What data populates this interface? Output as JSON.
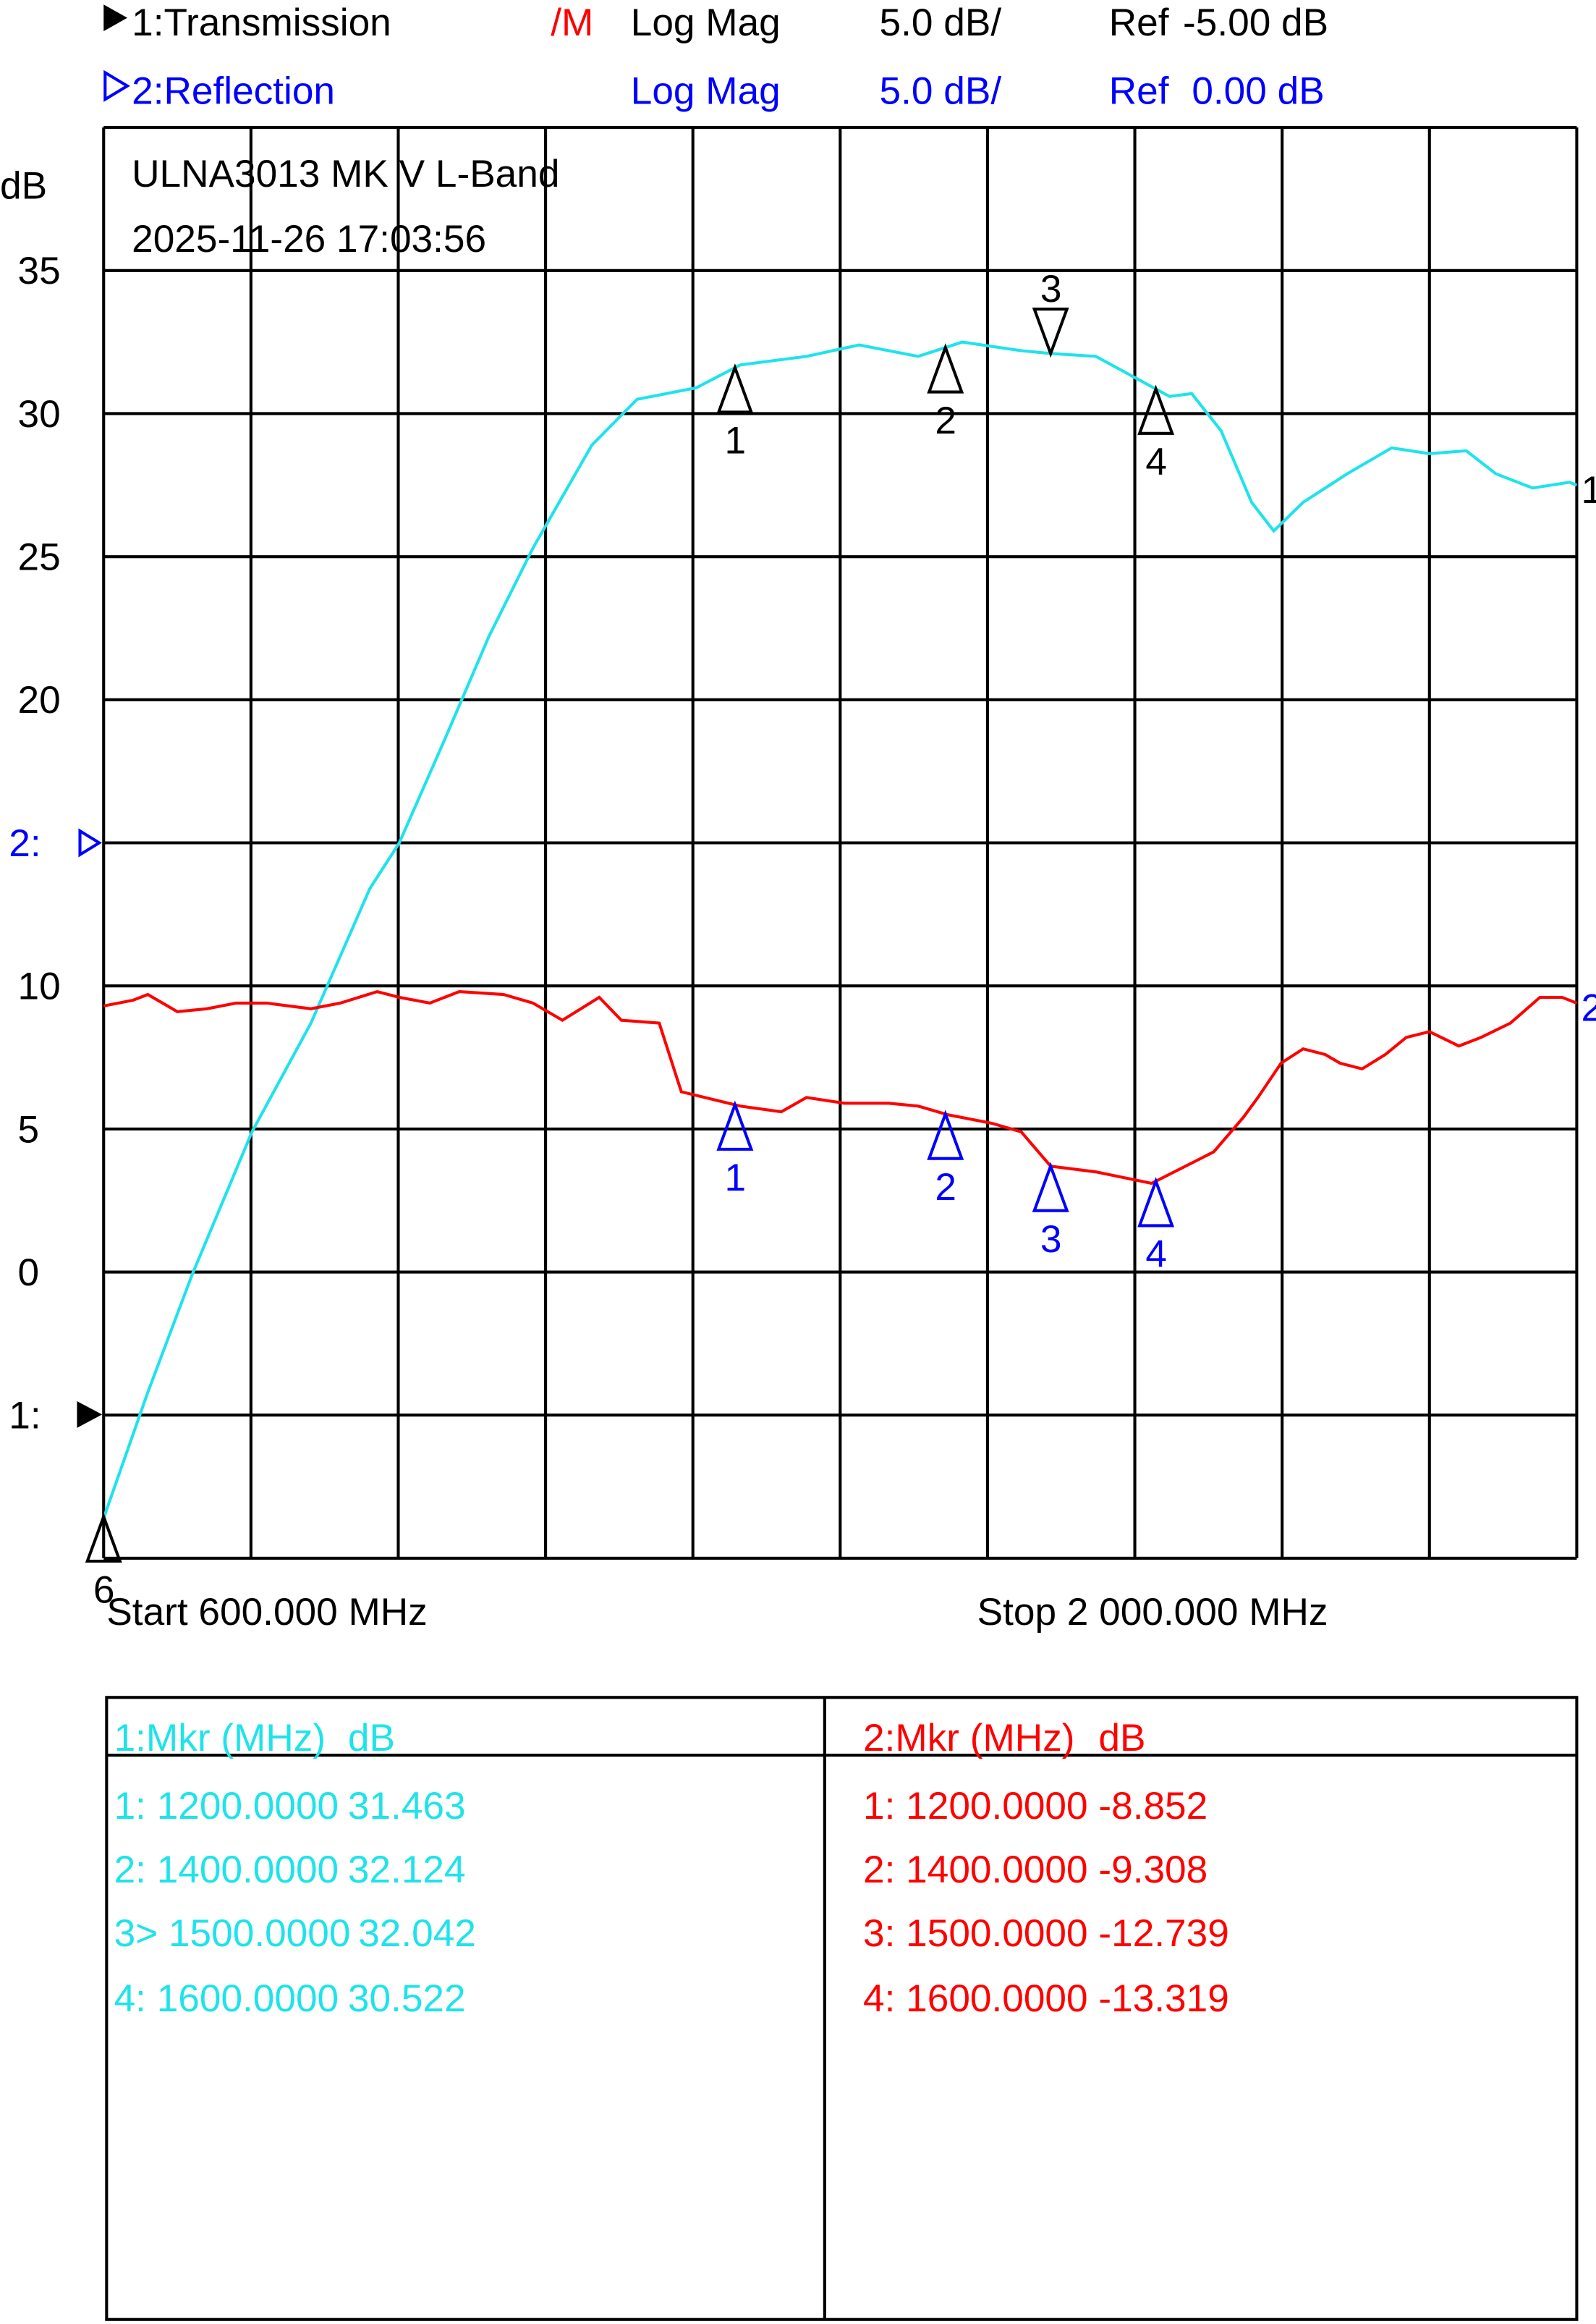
{
  "header": {
    "trace1": {
      "label": "1:Transmission",
      "flag": "/M",
      "format": "Log Mag",
      "scale": "5.0 dB/",
      "ref_label": "Ref",
      "ref": "-5.00 dB"
    },
    "trace2": {
      "label": "2:Reflection",
      "format": "Log Mag",
      "scale": "5.0 dB/",
      "ref_label": "Ref",
      "ref": "0.00 dB"
    }
  },
  "title": {
    "line1": "ULNA3013 MK V L-Band",
    "line2": "2025-11-26 17:03:56"
  },
  "colors": {
    "trace1": "#1fe3ea",
    "trace2": "#ff0000",
    "trace2_label": "#0000ff",
    "grid": "#000000"
  },
  "chart_data": {
    "type": "line",
    "xlabel": "MHz",
    "ylabel": "dB",
    "xlim": [
      600,
      2000
    ],
    "ylim": [
      -10,
      40
    ],
    "grid": true,
    "start_label": "Start 600.000 MHz",
    "stop_label": "Stop 2 000.000 MHz",
    "y_ticks": [
      {
        "value": 35,
        "label": "35"
      },
      {
        "value": 30,
        "label": "30"
      },
      {
        "value": 25,
        "label": "25"
      },
      {
        "value": 20,
        "label": "20"
      },
      {
        "value": 15,
        "label": "2:"
      },
      {
        "value": 10,
        "label": "10"
      },
      {
        "value": 5,
        "label": "5"
      },
      {
        "value": 0,
        "label": "0"
      },
      {
        "value": -5,
        "label": "1:"
      }
    ],
    "series": [
      {
        "name": "1:Transmission",
        "end_label": "1",
        "color": "#1fe3ea",
        "x": [
          600,
          642,
          684,
          741,
          797,
          853,
          881,
          924,
          966,
          1008,
          1064,
          1107,
          1163,
          1205,
          1268,
          1318,
          1374,
          1416,
          1472,
          1500,
          1543,
          1578,
          1613,
          1634,
          1662,
          1691,
          1712,
          1740,
          1782,
          1824,
          1860,
          1895,
          1923,
          1958,
          1993,
          2000
        ],
        "y": [
          -8.6,
          -4.2,
          -0.1,
          4.9,
          8.7,
          13.4,
          15.0,
          18.6,
          22.2,
          25.3,
          28.9,
          30.5,
          30.9,
          31.7,
          32.0,
          32.4,
          32.0,
          32.5,
          32.2,
          32.1,
          32.0,
          31.3,
          30.6,
          30.7,
          29.4,
          26.9,
          25.9,
          26.9,
          27.9,
          28.8,
          28.6,
          28.7,
          27.9,
          27.4,
          27.6,
          27.5
        ]
      },
      {
        "name": "2:Reflection",
        "end_label": "2",
        "color": "#ff0000",
        "x": [
          600,
          628,
          642,
          670,
          698,
          726,
          755,
          797,
          825,
          860,
          881,
          910,
          938,
          980,
          1008,
          1036,
          1071,
          1092,
          1128,
          1149,
          1205,
          1244,
          1268,
          1304,
          1346,
          1374,
          1402,
          1444,
          1472,
          1500,
          1543,
          1596,
          1655,
          1683,
          1697,
          1719,
          1740,
          1761,
          1775,
          1796,
          1818,
          1838,
          1860,
          1888,
          1909,
          1937,
          1965,
          1986,
          2000
        ],
        "y": [
          9.3,
          9.5,
          9.7,
          9.1,
          9.2,
          9.4,
          9.4,
          9.2,
          9.4,
          9.8,
          9.6,
          9.4,
          9.8,
          9.7,
          9.4,
          8.8,
          9.6,
          8.8,
          8.7,
          6.3,
          5.8,
          5.6,
          6.1,
          5.9,
          5.9,
          5.8,
          5.5,
          5.2,
          4.9,
          3.7,
          3.5,
          3.1,
          4.2,
          5.4,
          6.1,
          7.3,
          7.8,
          7.6,
          7.3,
          7.1,
          7.6,
          8.2,
          8.4,
          7.9,
          8.2,
          8.7,
          9.6,
          9.6,
          9.4
        ]
      }
    ],
    "markers": [
      {
        "trace": 1,
        "id": "1",
        "freq": 1200,
        "active": false
      },
      {
        "trace": 1,
        "id": "2",
        "freq": 1400,
        "active": false
      },
      {
        "trace": 1,
        "id": "3",
        "freq": 1500,
        "active": true
      },
      {
        "trace": 1,
        "id": "4",
        "freq": 1600,
        "active": false
      },
      {
        "trace": 2,
        "id": "1",
        "freq": 1200,
        "active": false
      },
      {
        "trace": 2,
        "id": "2",
        "freq": 1400,
        "active": false
      },
      {
        "trace": 2,
        "id": "3",
        "freq": 1500,
        "active": false
      },
      {
        "trace": 2,
        "id": "4",
        "freq": 1600,
        "active": false
      },
      {
        "trace": 0,
        "id": "6",
        "freq": 600,
        "active": false
      }
    ]
  },
  "marker_table": {
    "left": {
      "header_mkr": "1:Mkr (MHz)",
      "header_unit": "dB",
      "rows": [
        {
          "mkr": "1: 1200.0000",
          "val": "31.463"
        },
        {
          "mkr": "2: 1400.0000",
          "val": "32.124"
        },
        {
          "mkr": "3> 1500.0000",
          "val": "32.042"
        },
        {
          "mkr": "4: 1600.0000",
          "val": "30.522"
        }
      ]
    },
    "right": {
      "header_mkr": "2:Mkr (MHz)",
      "header_unit": "dB",
      "rows": [
        {
          "mkr": "1: 1200.0000",
          "val": "-8.852"
        },
        {
          "mkr": "2: 1400.0000",
          "val": "-9.308"
        },
        {
          "mkr": "3: 1500.0000",
          "val": "-12.739"
        },
        {
          "mkr": "4: 1600.0000",
          "val": "-13.319"
        }
      ]
    }
  }
}
